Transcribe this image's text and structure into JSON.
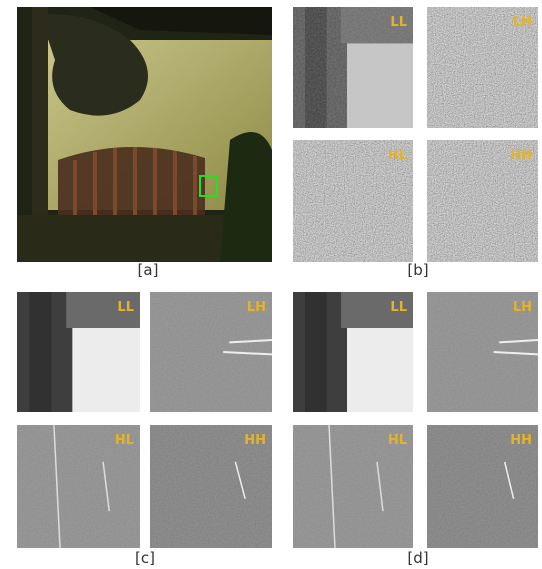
{
  "panels": [
    {
      "caption": "[a]"
    },
    {
      "caption": "[b]",
      "tiles": [
        "LL",
        "LH",
        "HL",
        "HH"
      ]
    },
    {
      "caption": "[c]",
      "tiles": [
        "LL",
        "LH",
        "HL",
        "HH"
      ]
    },
    {
      "caption": "[d]",
      "tiles": [
        "LL",
        "LH",
        "HL",
        "HH"
      ]
    }
  ]
}
